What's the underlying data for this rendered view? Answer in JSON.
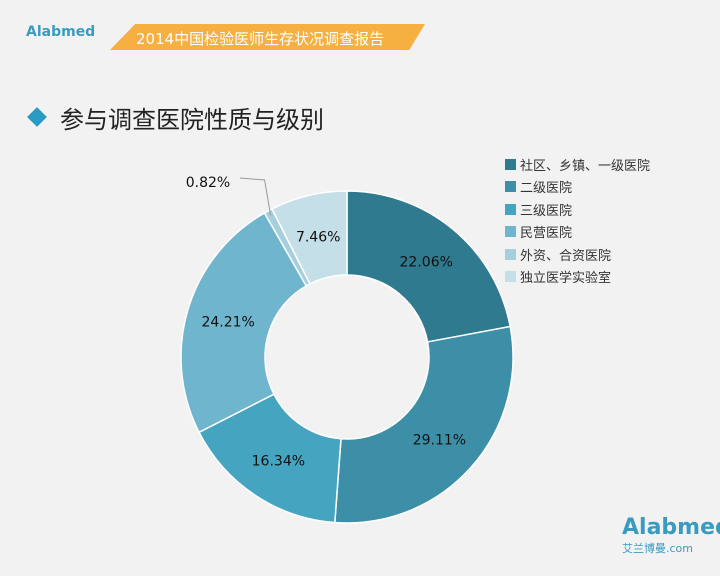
{
  "header": {
    "logo_text": "Alabmed",
    "logo_sub": "艾兰博曼.com",
    "banner": "2014中国检验医师生存状况调查报告"
  },
  "chart_data": {
    "type": "pie",
    "donut": true,
    "title": "参与调查医院性质与级别",
    "legend_position": "right",
    "categories": [
      "社区、乡镇、一级医院",
      "二级医院",
      "三级医院",
      "民营医院",
      "外资、合资医院",
      "独立医学实验室"
    ],
    "values": [
      22.06,
      29.11,
      16.34,
      24.21,
      0.82,
      7.46
    ],
    "labels": [
      "22.06%",
      "29.11%",
      "16.34%",
      "24.21%",
      "0.82%",
      "7.46%"
    ],
    "colors": [
      "#2f7a8f",
      "#3d8fa8",
      "#45a5c0",
      "#6fb5cd",
      "#a6cfdd",
      "#c5dfe8"
    ]
  },
  "footer": {
    "logo_text": "Alabmed",
    "logo_sub": "艾兰博曼.com"
  }
}
